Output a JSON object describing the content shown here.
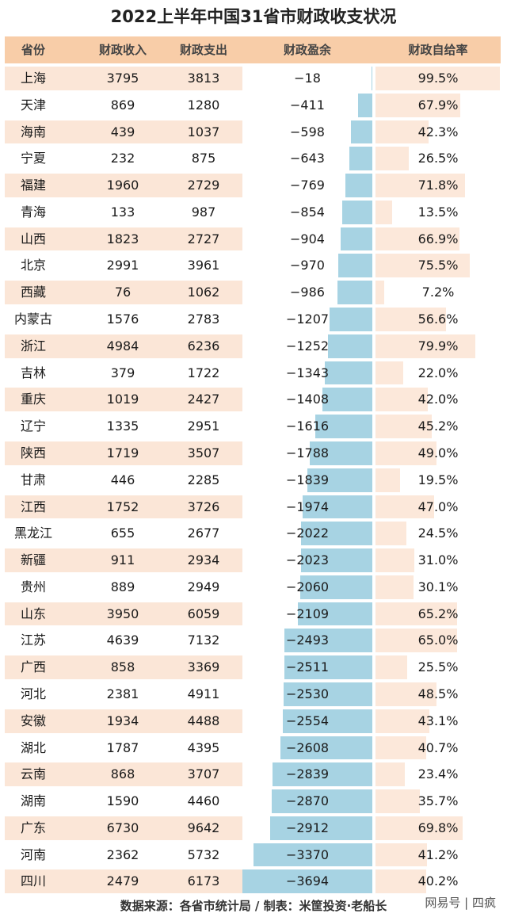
{
  "title": "2022上半年中国31省市财政收支状况",
  "footer": "数据来源：各省市统计局 / 制表：米筐投资·老船长",
  "watermark": "网易号 | 四疯",
  "colors": {
    "header_bg": "#f8cda8",
    "row_band": "#fbe6d7",
    "bar": "#a7d3e3",
    "rate_bg": "#fce8da"
  },
  "chart_data": {
    "type": "table",
    "title": "2022上半年中国31省市财政收支状况",
    "columns": [
      "省份",
      "财政收入",
      "财政支出",
      "财政盈余",
      "财政自给率"
    ],
    "rows": [
      {
        "province": "上海",
        "income": 3795,
        "expense": 3813,
        "surplus": "−18",
        "rate": "99.5%",
        "surplus_value": -18,
        "rate_value": 99.5
      },
      {
        "province": "天津",
        "income": 869,
        "expense": 1280,
        "surplus": "−411",
        "rate": "67.9%",
        "surplus_value": -411,
        "rate_value": 67.9
      },
      {
        "province": "海南",
        "income": 439,
        "expense": 1037,
        "surplus": "−598",
        "rate": "42.3%",
        "surplus_value": -598,
        "rate_value": 42.3
      },
      {
        "province": "宁夏",
        "income": 232,
        "expense": 875,
        "surplus": "−643",
        "rate": "26.5%",
        "surplus_value": -643,
        "rate_value": 26.5
      },
      {
        "province": "福建",
        "income": 1960,
        "expense": 2729,
        "surplus": "−769",
        "rate": "71.8%",
        "surplus_value": -769,
        "rate_value": 71.8
      },
      {
        "province": "青海",
        "income": 133,
        "expense": 987,
        "surplus": "−854",
        "rate": "13.5%",
        "surplus_value": -854,
        "rate_value": 13.5
      },
      {
        "province": "山西",
        "income": 1823,
        "expense": 2727,
        "surplus": "−904",
        "rate": "66.9%",
        "surplus_value": -904,
        "rate_value": 66.9
      },
      {
        "province": "北京",
        "income": 2991,
        "expense": 3961,
        "surplus": "−970",
        "rate": "75.5%",
        "surplus_value": -970,
        "rate_value": 75.5
      },
      {
        "province": "西藏",
        "income": 76,
        "expense": 1062,
        "surplus": "−986",
        "rate": "7.2%",
        "surplus_value": -986,
        "rate_value": 7.2
      },
      {
        "province": "内蒙古",
        "income": 1576,
        "expense": 2783,
        "surplus": "−1207",
        "rate": "56.6%",
        "surplus_value": -1207,
        "rate_value": 56.6
      },
      {
        "province": "浙江",
        "income": 4984,
        "expense": 6236,
        "surplus": "−1252",
        "rate": "79.9%",
        "surplus_value": -1252,
        "rate_value": 79.9
      },
      {
        "province": "吉林",
        "income": 379,
        "expense": 1722,
        "surplus": "−1343",
        "rate": "22.0%",
        "surplus_value": -1343,
        "rate_value": 22.0
      },
      {
        "province": "重庆",
        "income": 1019,
        "expense": 2427,
        "surplus": "−1408",
        "rate": "42.0%",
        "surplus_value": -1408,
        "rate_value": 42.0
      },
      {
        "province": "辽宁",
        "income": 1335,
        "expense": 2951,
        "surplus": "−1616",
        "rate": "45.2%",
        "surplus_value": -1616,
        "rate_value": 45.2
      },
      {
        "province": "陕西",
        "income": 1719,
        "expense": 3507,
        "surplus": "−1788",
        "rate": "49.0%",
        "surplus_value": -1788,
        "rate_value": 49.0
      },
      {
        "province": "甘肃",
        "income": 446,
        "expense": 2285,
        "surplus": "−1839",
        "rate": "19.5%",
        "surplus_value": -1839,
        "rate_value": 19.5
      },
      {
        "province": "江西",
        "income": 1752,
        "expense": 3726,
        "surplus": "−1974",
        "rate": "47.0%",
        "surplus_value": -1974,
        "rate_value": 47.0
      },
      {
        "province": "黑龙江",
        "income": 655,
        "expense": 2677,
        "surplus": "−2022",
        "rate": "24.5%",
        "surplus_value": -2022,
        "rate_value": 24.5
      },
      {
        "province": "新疆",
        "income": 911,
        "expense": 2934,
        "surplus": "−2023",
        "rate": "31.0%",
        "surplus_value": -2023,
        "rate_value": 31.0
      },
      {
        "province": "贵州",
        "income": 889,
        "expense": 2949,
        "surplus": "−2060",
        "rate": "30.1%",
        "surplus_value": -2060,
        "rate_value": 30.1
      },
      {
        "province": "山东",
        "income": 3950,
        "expense": 6059,
        "surplus": "−2109",
        "rate": "65.2%",
        "surplus_value": -2109,
        "rate_value": 65.2
      },
      {
        "province": "江苏",
        "income": 4639,
        "expense": 7132,
        "surplus": "−2493",
        "rate": "65.0%",
        "surplus_value": -2493,
        "rate_value": 65.0
      },
      {
        "province": "广西",
        "income": 858,
        "expense": 3369,
        "surplus": "−2511",
        "rate": "25.5%",
        "surplus_value": -2511,
        "rate_value": 25.5
      },
      {
        "province": "河北",
        "income": 2381,
        "expense": 4911,
        "surplus": "−2530",
        "rate": "48.5%",
        "surplus_value": -2530,
        "rate_value": 48.5
      },
      {
        "province": "安徽",
        "income": 1934,
        "expense": 4488,
        "surplus": "−2554",
        "rate": "43.1%",
        "surplus_value": -2554,
        "rate_value": 43.1
      },
      {
        "province": "湖北",
        "income": 1787,
        "expense": 4395,
        "surplus": "−2608",
        "rate": "40.7%",
        "surplus_value": -2608,
        "rate_value": 40.7
      },
      {
        "province": "云南",
        "income": 868,
        "expense": 3707,
        "surplus": "−2839",
        "rate": "23.4%",
        "surplus_value": -2839,
        "rate_value": 23.4
      },
      {
        "province": "湖南",
        "income": 1590,
        "expense": 4460,
        "surplus": "−2870",
        "rate": "35.7%",
        "surplus_value": -2870,
        "rate_value": 35.7
      },
      {
        "province": "广东",
        "income": 6730,
        "expense": 9642,
        "surplus": "−2912",
        "rate": "69.8%",
        "surplus_value": -2912,
        "rate_value": 69.8
      },
      {
        "province": "河南",
        "income": 2362,
        "expense": 5732,
        "surplus": "−3370",
        "rate": "41.2%",
        "surplus_value": -3370,
        "rate_value": 41.2
      },
      {
        "province": "四川",
        "income": 2479,
        "expense": 6173,
        "surplus": "−3694",
        "rate": "40.2%",
        "surplus_value": -3694,
        "rate_value": 40.2
      }
    ]
  }
}
